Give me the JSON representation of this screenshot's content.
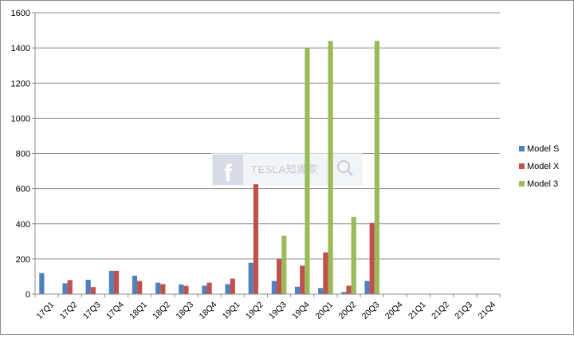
{
  "watermark": {
    "text": "TESLA知識家",
    "icon": "facebook-f-icon"
  },
  "chart_data": {
    "type": "bar",
    "title": "",
    "xlabel": "",
    "ylabel": "",
    "ylim": [
      0,
      1600
    ],
    "yticks": [
      0,
      200,
      400,
      600,
      800,
      1000,
      1200,
      1400,
      1600
    ],
    "grid": true,
    "legend_position": "right",
    "categories": [
      "17Q1",
      "17Q2",
      "17Q3",
      "17Q4",
      "18Q1",
      "18Q2",
      "18Q3",
      "18Q4",
      "19Q1",
      "19Q2",
      "19Q3",
      "19Q4",
      "20Q1",
      "20Q2",
      "20Q3",
      "20Q4",
      "21Q1",
      "21Q2",
      "21Q3",
      "21Q4"
    ],
    "series": [
      {
        "name": "Model S",
        "color": "#4f81bd",
        "values": [
          120,
          62,
          82,
          132,
          105,
          65,
          55,
          48,
          57,
          178,
          75,
          42,
          35,
          12,
          75,
          0,
          0,
          0,
          0,
          0
        ]
      },
      {
        "name": "Model X",
        "color": "#c0504d",
        "values": [
          0,
          80,
          40,
          132,
          75,
          57,
          47,
          65,
          88,
          625,
          200,
          162,
          238,
          48,
          405,
          0,
          0,
          0,
          0,
          0
        ]
      },
      {
        "name": "Model 3",
        "color": "#9bbb59",
        "values": [
          0,
          0,
          0,
          0,
          0,
          0,
          0,
          0,
          0,
          0,
          332,
          1400,
          1440,
          440,
          1440,
          0,
          0,
          0,
          0,
          0
        ]
      }
    ]
  }
}
